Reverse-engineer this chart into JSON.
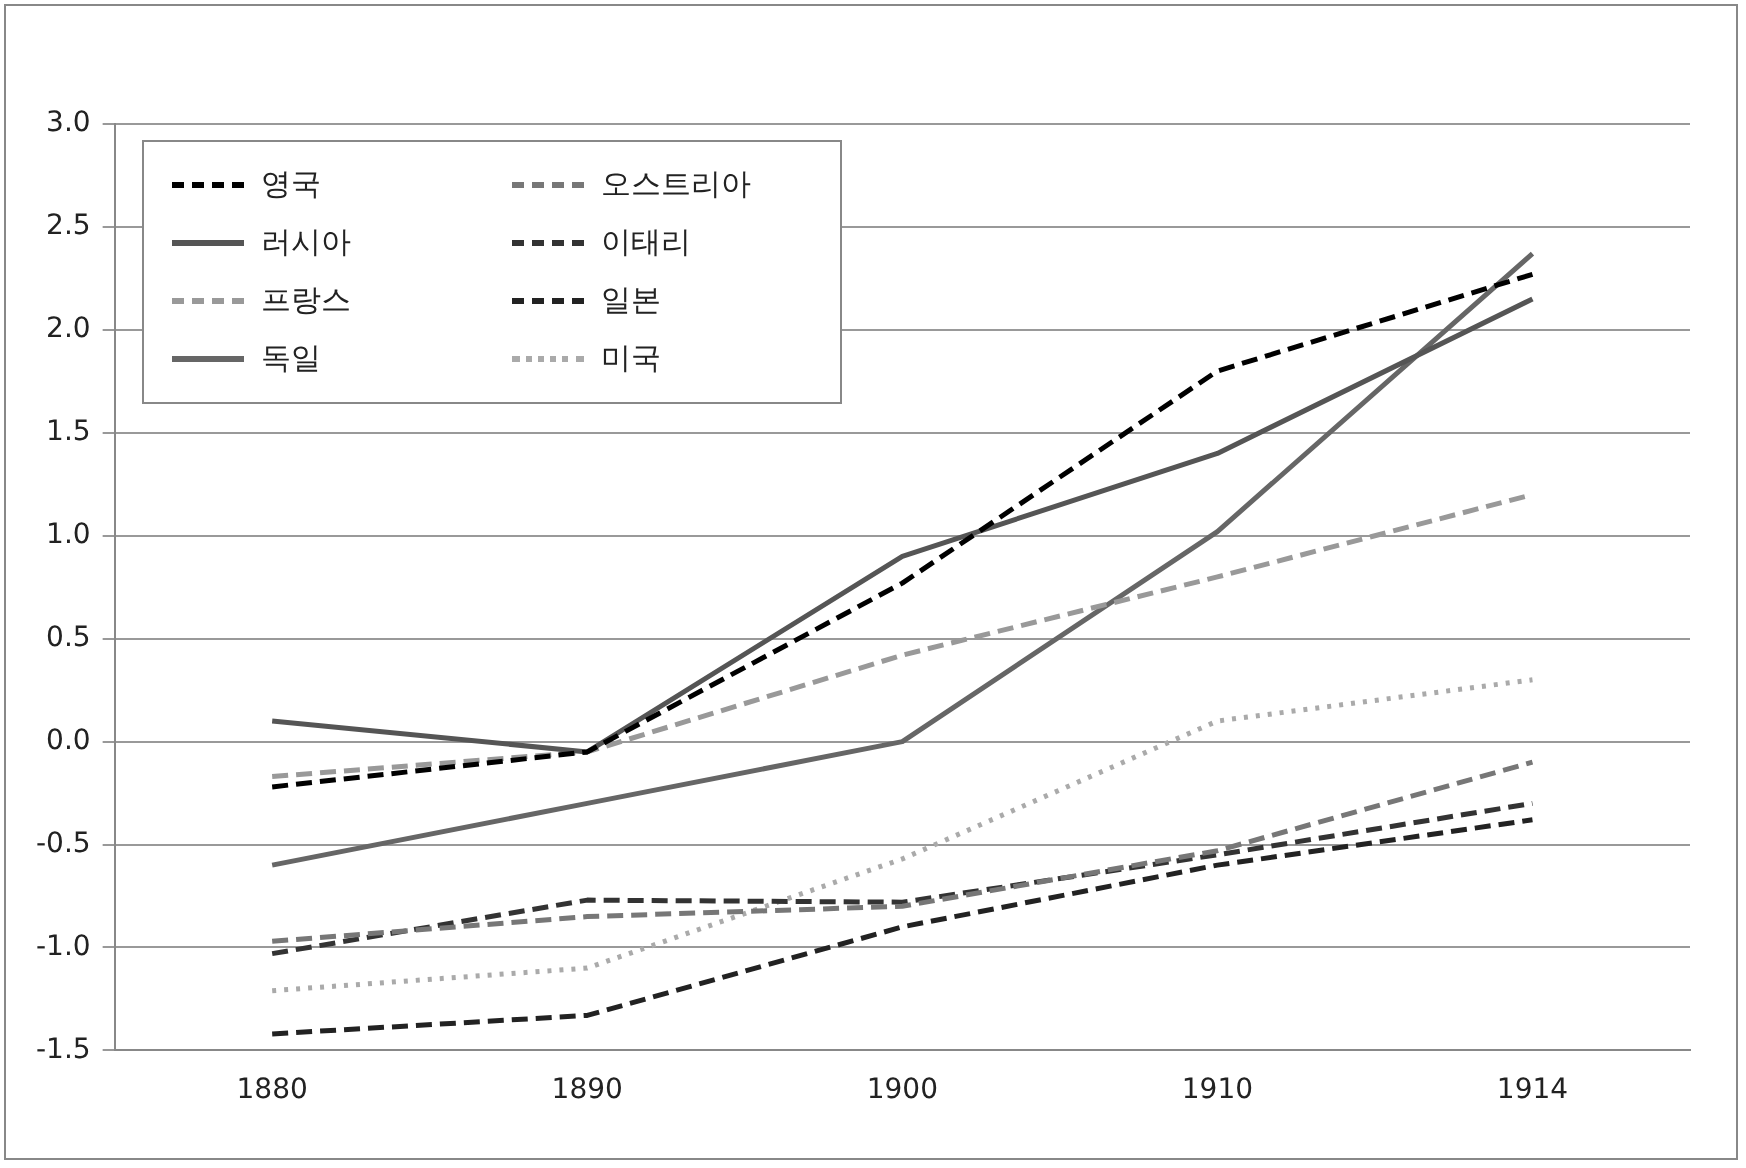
{
  "chart_data": {
    "type": "line",
    "categories": [
      "1880",
      "1890",
      "1900",
      "1910",
      "1914"
    ],
    "series": [
      {
        "name": "영국",
        "color": "#000000",
        "line_style": "dashed",
        "values": [
          -0.22,
          -0.05,
          0.77,
          1.8,
          2.27
        ]
      },
      {
        "name": "러시아",
        "color": "#555555",
        "line_style": "solid",
        "values": [
          0.1,
          -0.05,
          0.9,
          1.4,
          2.15
        ]
      },
      {
        "name": "프랑스",
        "color": "#999999",
        "line_style": "dashed",
        "values": [
          -0.17,
          -0.05,
          0.42,
          0.8,
          1.2
        ]
      },
      {
        "name": "독일",
        "color": "#666666",
        "line_style": "solid",
        "values": [
          -0.6,
          -0.3,
          0.0,
          1.02,
          2.37
        ]
      },
      {
        "name": "오스트리아",
        "color": "#777777",
        "line_style": "dashed",
        "values": [
          -0.97,
          -0.85,
          -0.8,
          -0.53,
          -0.1
        ]
      },
      {
        "name": "이태리",
        "color": "#333333",
        "line_style": "dashed",
        "values": [
          -1.03,
          -0.77,
          -0.78,
          -0.55,
          -0.3
        ]
      },
      {
        "name": "일본",
        "color": "#222222",
        "line_style": "dashed",
        "values": [
          -1.42,
          -1.33,
          -0.9,
          -0.6,
          -0.38
        ]
      },
      {
        "name": "미국",
        "color": "#aaaaaa",
        "line_style": "dotted",
        "values": [
          -1.21,
          -1.1,
          -0.57,
          0.1,
          0.3
        ]
      }
    ],
    "ylim": [
      -1.5,
      3.0
    ],
    "yticks": [
      {
        "value": -1.5,
        "label": "-1.5"
      },
      {
        "value": -1,
        "label": "-1.0"
      },
      {
        "value": -0.5,
        "label": "-0.5"
      },
      {
        "value": 0,
        "label": "0.0"
      },
      {
        "value": 0.5,
        "label": "0.5"
      },
      {
        "value": 1,
        "label": "1.0"
      },
      {
        "value": 1.5,
        "label": "1.5"
      },
      {
        "value": 2,
        "label": "2.0"
      },
      {
        "value": 2.5,
        "label": "2.5"
      },
      {
        "value": 3,
        "label": "3.0"
      }
    ],
    "grid": "y",
    "legend": "top left",
    "marker": "none"
  }
}
